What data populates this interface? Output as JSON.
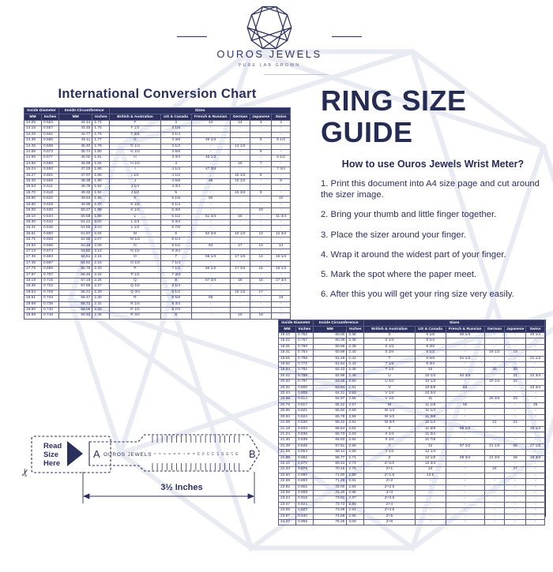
{
  "logo": {
    "name": "OUROS JEWELS",
    "tagline": "PURE LAB GROWN"
  },
  "colors": {
    "navy": "#2d3160",
    "watermark": "#e9ebf3",
    "white": "#ffffff"
  },
  "left_chart": {
    "title": "International Conversion Chart",
    "header_groups": [
      "Inside Diameter",
      "Inside Circumference",
      "Sizes"
    ],
    "group_spans": [
      2,
      2,
      6
    ],
    "columns": [
      "MM",
      "Inches",
      "MM",
      "Inches",
      "British & Australian",
      "US & Canada",
      "French & Russian",
      "German",
      "Japanese",
      "Swiss"
    ],
    "rows": [
      [
        "14.05",
        "0.553",
        "44.14",
        "1.74",
        "F",
        "3",
        "44",
        "14",
        "4",
        "4"
      ],
      [
        "14.15",
        "0.557",
        "44.45",
        "1.75",
        "F 1/2",
        "3 1/8",
        "-",
        "-",
        "-",
        "-"
      ],
      [
        "14.25",
        "0.561",
        "44.77",
        "1.76",
        "F 3/4",
        "3 1/4",
        "-",
        "-",
        "-",
        "-"
      ],
      [
        "14.36",
        "0.565",
        "45.11",
        "1.77",
        "G",
        "3 3/8",
        "45 1/4",
        "-",
        "5",
        "5 1/4"
      ],
      [
        "14.45",
        "0.569",
        "45.40",
        "1.79",
        "G 1/4",
        "3 1/2",
        "-",
        "14 1/2",
        "-",
        "-"
      ],
      [
        "14.56",
        "0.573",
        "45.74",
        "1.80",
        "G 1/2",
        "3 5/8",
        "-",
        "-",
        "6",
        "-"
      ],
      [
        "14.65",
        "0.577",
        "46.02",
        "1.81",
        "H",
        "3 3/4",
        "46 1/2",
        "-",
        "-",
        "6 1/2"
      ],
      [
        "14.86",
        "0.585",
        "46.68",
        "1.84",
        "H 1/2",
        "4",
        "-",
        "15",
        "7",
        "-"
      ],
      [
        "15.04",
        "0.592",
        "47.25",
        "1.86",
        "I",
        "4 1/4",
        "47 3/4",
        "-",
        "-",
        "7 3/4"
      ],
      [
        "15.27",
        "0.601",
        "47.97",
        "1.89",
        "I 1/2",
        "4 1/2",
        "-",
        "15 1/4",
        "8",
        "-"
      ],
      [
        "15.40",
        "0.606",
        "48.38",
        "1.90",
        "J",
        "4 5/8",
        "49",
        "15 1/2",
        "-",
        "9"
      ],
      [
        "15.53",
        "0.611",
        "48.79",
        "1.92",
        "J 1/4",
        "4 3/4",
        "-",
        "-",
        "-",
        "-"
      ],
      [
        "15.70",
        "0.618",
        "49.32",
        "1.94",
        "J 1/2",
        "5",
        "-",
        "15 3/4",
        "9",
        "-"
      ],
      [
        "15.80",
        "0.622",
        "49.64",
        "1.95",
        "K",
        "5 1/8",
        "50",
        "-",
        "-",
        "10"
      ],
      [
        "15.90",
        "0.626",
        "49.95",
        "1.97",
        "K 1/4",
        "5 1/4",
        "-",
        "-",
        "-",
        "-"
      ],
      [
        "16.00",
        "0.630",
        "50.27",
        "1.98",
        "K 1/2",
        "5 3/8",
        "-",
        "-",
        "10",
        "-"
      ],
      [
        "16.10",
        "0.634",
        "50.58",
        "1.99",
        "L",
        "5 1/2",
        "51 3/4",
        "16",
        "-",
        "11 3/4"
      ],
      [
        "16.30",
        "0.642",
        "51.21",
        "2.02",
        "L 1/4",
        "5 3/4",
        "-",
        "-",
        "-",
        "-"
      ],
      [
        "16.41",
        "0.646",
        "51.55",
        "2.03",
        "L 1/2",
        "5 7/8",
        "-",
        "-",
        "-",
        "-"
      ],
      [
        "16.51",
        "0.650",
        "51.87",
        "2.04",
        "M",
        "6",
        "52 3/4",
        "16 1/2",
        "12",
        "12 3/4"
      ],
      [
        "16.71",
        "0.658",
        "52.50",
        "2.07",
        "M 1/2",
        "6 1/4",
        "-",
        "-",
        "-",
        "-"
      ],
      [
        "16.92",
        "0.666",
        "53.16",
        "2.09",
        "N",
        "6 1/2",
        "54",
        "17",
        "13",
        "14"
      ],
      [
        "17.13",
        "0.674",
        "53.82",
        "2.12",
        "N 1/2",
        "6 3/4",
        "-",
        "-",
        "-",
        "-"
      ],
      [
        "17.35",
        "0.683",
        "54.51",
        "2.15",
        "O",
        "7",
        "55 1/4",
        "17 1/4",
        "14",
        "15 1/4"
      ],
      [
        "17.45",
        "0.687",
        "54.82",
        "2.16",
        "O 1/2",
        "7 1/4",
        "-",
        "-",
        "-",
        "-"
      ],
      [
        "17.75",
        "0.699",
        "55.76",
        "2.20",
        "P",
        "7 1/2",
        "56 1/2",
        "17 3/4",
        "15",
        "16 1/2"
      ],
      [
        "17.97",
        "0.707",
        "56.45",
        "2.22",
        "P 1/2",
        "7 3/4",
        "-",
        "-",
        "-",
        "-"
      ],
      [
        "18.19",
        "0.716",
        "57.15",
        "2.25",
        "Q",
        "8",
        "57 3/4",
        "18",
        "16",
        "17 3/4"
      ],
      [
        "18.35",
        "0.722",
        "57.65",
        "2.27",
        "Q 1/2",
        "8 1/4",
        "-",
        "-",
        "-",
        "-"
      ],
      [
        "18.53",
        "0.729",
        "58.21",
        "2.29",
        "Q 3/4",
        "8 1/2",
        "-",
        "18 1/2",
        "17",
        "-"
      ],
      [
        "18.61",
        "0.733",
        "58.47",
        "2.30",
        "R",
        "8 5/8",
        "59",
        "-",
        "-",
        "19"
      ],
      [
        "18.69",
        "0.736",
        "58.72",
        "2.31",
        "R 1/4",
        "8 3/4",
        "-",
        "-",
        "-",
        "-"
      ],
      [
        "18.80",
        "0.740",
        "59.06",
        "2.32",
        "R 1/2",
        "8 7/8",
        "-",
        "-",
        "-",
        "-"
      ],
      [
        "18.89",
        "0.748",
        "59.34",
        "2.35",
        "R 3/4",
        "9",
        "-",
        "19",
        "18",
        "-"
      ]
    ]
  },
  "guide": {
    "title": "RING SIZE GUIDE",
    "subtitle": "How to use Ouros Jewels Wrist Meter?",
    "steps": [
      "1. Print this document into A4 size page and cut around the sizer image.",
      "2. Bring your thumb and little finger together.",
      "3. Place the sizer around your finger.",
      "4. Wrap it around the widest part of your finger.",
      "5. Mark the spot where the paper meet.",
      "6. After this you will get your ring size very easily."
    ]
  },
  "right_chart": {
    "header_groups": [
      "Inside Diameter",
      "Inside Circumference",
      "Sizes"
    ],
    "group_spans": [
      2,
      2,
      6
    ],
    "columns": [
      "MM",
      "Inches",
      "MM",
      "Inches",
      "British & Australian",
      "US & Canada",
      "French & Russian",
      "German",
      "Japanese",
      "Swiss"
    ],
    "rows": [
      [
        "19.10",
        "0.752",
        "60.00",
        "2.36",
        "S",
        "9 1/8",
        "60 1/4",
        "-",
        "-",
        "20 1/4"
      ],
      [
        "19.22",
        "0.757",
        "60.38",
        "2.38",
        "S 1/4",
        "9 1/4",
        "-",
        "-",
        "-",
        "-"
      ],
      [
        "19.31",
        "0.760",
        "60.66",
        "2.39",
        "S 1/2",
        "9 3/8",
        "-",
        "-",
        "-",
        "-"
      ],
      [
        "19.41",
        "0.764",
        "60.98",
        "2.40",
        "S 3/4",
        "9 1/2",
        "-",
        "19 1/2",
        "19",
        "-"
      ],
      [
        "19.51",
        "0.768",
        "61.29",
        "2.41",
        "T",
        "9 5/8",
        "61 1/2",
        "-",
        "-",
        "21 1/2"
      ],
      [
        "19.62",
        "0.772",
        "61.64",
        "2.43",
        "T 1/4",
        "9 3/4",
        "-",
        "-",
        "-",
        "-"
      ],
      [
        "19.84",
        "0.781",
        "62.33",
        "2.45",
        "T 1/2",
        "10",
        "-",
        "20",
        "20",
        "-"
      ],
      [
        "20.02",
        "0.788",
        "62.89",
        "2.48",
        "U",
        "10 1/4",
        "62 3/4",
        "-",
        "21",
        "22 3/4"
      ],
      [
        "20.20",
        "0.797",
        "63.46",
        "2.50",
        "U 1/2",
        "10 1/2",
        "-",
        "20 1/4",
        "22",
        "-"
      ],
      [
        "20.32",
        "0.800",
        "63.84",
        "2.51",
        "V",
        "10 5/8",
        "63",
        "-",
        "-",
        "23 3/4"
      ],
      [
        "20.44",
        "0.805",
        "64.21",
        "2.53",
        "V 1/4",
        "10 3/4",
        "-",
        "-",
        "-",
        "-"
      ],
      [
        "20.68",
        "0.814",
        "64.97",
        "2.56",
        "V 1/2",
        "11",
        "-",
        "20 3/4",
        "23",
        "-"
      ],
      [
        "20.76",
        "0.817",
        "65.22",
        "2.57",
        "W",
        "11 1/8",
        "65",
        "-",
        "-",
        "25"
      ],
      [
        "20.85",
        "0.821",
        "65.50",
        "2.58",
        "W 1/4",
        "11 1/4",
        "-",
        "-",
        "-",
        "-"
      ],
      [
        "20.94",
        "0.824",
        "65.78",
        "2.59",
        "W 1/2",
        "11 3/8",
        "-",
        "-",
        "-",
        "-"
      ],
      [
        "21.08",
        "0.830",
        "66.22",
        "2.61",
        "W 3/4",
        "11 1/2",
        "-",
        "21",
        "24",
        "-"
      ],
      [
        "21.18",
        "0.834",
        "66.54",
        "2.62",
        "X",
        "11 5/8",
        "66 1/4",
        "-",
        "-",
        "26 1/4"
      ],
      [
        "21.24",
        "0.836",
        "66.73",
        "2.63",
        "X 1/4",
        "11 3/4",
        "-",
        "-",
        "-",
        "-"
      ],
      [
        "21.30",
        "0.839",
        "66.92",
        "2.64",
        "X 1/2",
        "11 7/8",
        "-",
        "-",
        "-",
        "-"
      ],
      [
        "21.49",
        "0.846",
        "67.51",
        "2.66",
        "Y",
        "12",
        "67 1/2",
        "21 1/4",
        "25",
        "27 1/2"
      ],
      [
        "21.69",
        "0.854",
        "68.14",
        "2.68",
        "Y 1/2",
        "12 1/4",
        "-",
        "-",
        "-",
        "-"
      ],
      [
        "21.89",
        "0.862",
        "68.77",
        "2.71",
        "Z",
        "12 1/2",
        "68 3/4",
        "21 3/4",
        "26",
        "28 3/4"
      ],
      [
        "22.10",
        "0.870",
        "69.43",
        "2.73",
        "Z+1/2",
        "12 3/4",
        "-",
        "-",
        "-",
        "-"
      ],
      [
        "22.33",
        "0.879",
        "70.15",
        "2.76",
        "Z+1",
        "13",
        "-",
        "22",
        "27",
        "-"
      ],
      [
        "22.60",
        "0.890",
        "71.00",
        "2.80",
        "Z+1.5",
        "13.5",
        "-",
        "-",
        "-",
        "-"
      ],
      [
        "22.69",
        "0.893",
        "71.26",
        "2.81",
        "Z+2",
        "-",
        "-",
        "-",
        "-",
        "-"
      ],
      [
        "22.92",
        "0.902",
        "72.00",
        "2.83",
        "Z+2.5",
        "-",
        "-",
        "-",
        "-",
        "-"
      ],
      [
        "23.06",
        "0.908",
        "72.45",
        "2.85",
        "Z+3",
        "-",
        "-",
        "-",
        "-",
        "-"
      ],
      [
        "23.24",
        "0.915",
        "73.01",
        "2.87",
        "Z+3.5",
        "-",
        "-",
        "-",
        "-",
        "-"
      ],
      [
        "23.47",
        "0.924",
        "73.73",
        "2.90",
        "Z+4",
        "-",
        "-",
        "-",
        "-",
        "-"
      ],
      [
        "23.55",
        "0.927",
        "73.98",
        "2.91",
        "Z+4.5",
        "-",
        "-",
        "-",
        "-",
        "-"
      ],
      [
        "23.87",
        "0.940",
        "74.99",
        "2.95",
        "Z+5",
        "-",
        "-",
        "-",
        "-",
        "-"
      ],
      [
        "24.27",
        "0.956",
        "76.25",
        "3.00",
        "Z+6",
        "-",
        "-",
        "-",
        "-",
        "-"
      ]
    ]
  },
  "sizer": {
    "read_label": "Read Size Here",
    "a_label": "A",
    "b_label": "B",
    "brand": "OUROS JEWELS",
    "width_label": "3½ Inches",
    "scissors_icon": "✂",
    "ruler_numbers": [
      "1",
      "2",
      "3",
      "4",
      "5",
      "6",
      "7",
      "8",
      "9",
      "10",
      "11",
      "12",
      "13",
      "14",
      "15",
      "16",
      "17",
      "18"
    ]
  }
}
